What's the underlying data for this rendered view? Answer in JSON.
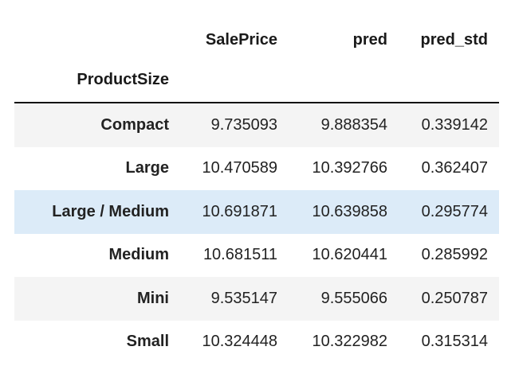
{
  "table": {
    "columns": [
      "SalePrice",
      "pred",
      "pred_std"
    ],
    "index_name": "ProductSize",
    "rows": [
      {
        "index": "Compact",
        "values": [
          "9.735093",
          "9.888354",
          "0.339142"
        ],
        "state": "striped"
      },
      {
        "index": "Large",
        "values": [
          "10.470589",
          "10.392766",
          "0.362407"
        ],
        "state": "plain"
      },
      {
        "index": "Large / Medium",
        "values": [
          "10.691871",
          "10.639858",
          "0.295774"
        ],
        "state": "hovered"
      },
      {
        "index": "Medium",
        "values": [
          "10.681511",
          "10.620441",
          "0.285992"
        ],
        "state": "plain"
      },
      {
        "index": "Mini",
        "values": [
          "9.535147",
          "9.555066",
          "0.250787"
        ],
        "state": "striped"
      },
      {
        "index": "Small",
        "values": [
          "10.324448",
          "10.322982",
          "0.315314"
        ],
        "state": "plain"
      }
    ]
  },
  "colors": {
    "stripe": "#f4f4f4",
    "hover": "#dcebf8",
    "rule": "#111111"
  }
}
